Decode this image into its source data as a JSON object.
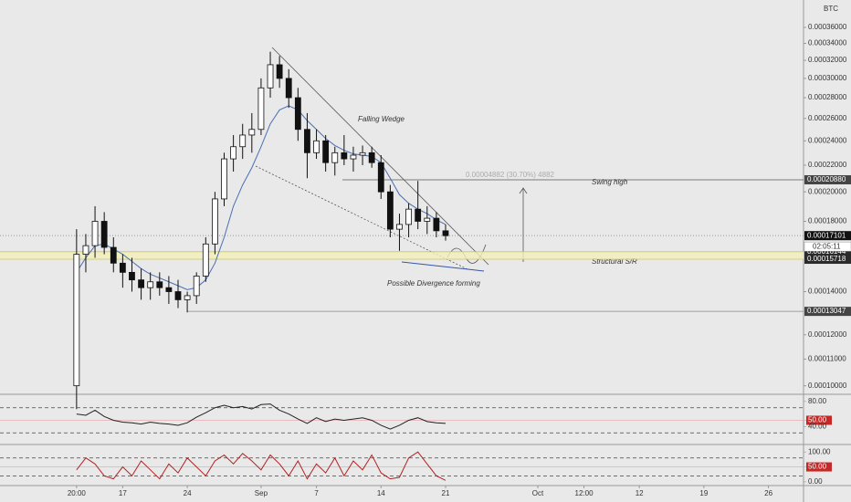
{
  "chart_data": [
    {
      "type": "candlestick",
      "symbol": "BTC",
      "x": [
        0,
        1,
        2,
        3,
        4,
        5,
        6,
        7,
        8,
        9,
        10,
        11,
        12,
        13,
        14,
        15,
        16,
        17,
        18,
        19,
        20,
        21,
        22,
        23,
        24,
        25,
        26,
        27,
        28,
        29,
        30,
        31,
        32,
        33,
        34,
        35,
        36,
        37,
        38,
        39,
        40
      ],
      "open": [
        0.0001,
        0.00016,
        0.000165,
        0.00018,
        0.000164,
        0.000155,
        0.00015,
        0.000146,
        0.000142,
        0.000145,
        0.000142,
        0.00014,
        0.000136,
        0.000138,
        0.000148,
        0.000166,
        0.000195,
        0.000225,
        0.000235,
        0.000245,
        0.00025,
        0.00029,
        0.000315,
        0.0003,
        0.00028,
        0.00025,
        0.00023,
        0.00024,
        0.000222,
        0.00023,
        0.000225,
        0.000228,
        0.00023,
        0.000222,
        0.0002,
        0.000175,
        0.000178,
        0.000188,
        0.00018,
        0.000182,
        0.000174
      ],
      "high": [
        0.000175,
        0.000172,
        0.00019,
        0.000186,
        0.00017,
        0.00016,
        0.000158,
        0.000152,
        0.00015,
        0.00015,
        0.000148,
        0.000146,
        0.00014,
        0.00015,
        0.00017,
        0.0002,
        0.00023,
        0.000245,
        0.000255,
        0.000265,
        0.0003,
        0.00033,
        0.000325,
        0.00031,
        0.00029,
        0.000265,
        0.00025,
        0.000245,
        0.000235,
        0.000245,
        0.000235,
        0.000236,
        0.000235,
        0.000228,
        0.000205,
        0.000185,
        0.000192,
        0.000208,
        0.00019,
        0.000186,
        0.000178
      ],
      "low": [
        9.2e-05,
        0.00015,
        0.000158,
        0.00016,
        0.00015,
        0.000142,
        0.00014,
        0.000136,
        0.000136,
        0.000138,
        0.000134,
        0.000132,
        0.00013,
        0.000134,
        0.000145,
        0.00016,
        0.00019,
        0.000215,
        0.000225,
        0.00023,
        0.000245,
        0.00028,
        0.00029,
        0.00027,
        0.00024,
        0.00021,
        0.000225,
        0.000215,
        0.000212,
        0.00022,
        0.000215,
        0.00022,
        0.000218,
        0.000195,
        0.00017,
        0.000162,
        0.00017,
        0.000175,
        0.000172,
        0.00017,
        0.000168
      ],
      "close": [
        0.00016,
        0.000165,
        0.00018,
        0.000164,
        0.000155,
        0.00015,
        0.000146,
        0.000142,
        0.000145,
        0.000142,
        0.00014,
        0.000136,
        0.000138,
        0.000148,
        0.000166,
        0.000195,
        0.000225,
        0.000235,
        0.000245,
        0.00025,
        0.00029,
        0.000315,
        0.0003,
        0.00028,
        0.00025,
        0.00023,
        0.00024,
        0.000222,
        0.00023,
        0.000225,
        0.000228,
        0.00023,
        0.000222,
        0.0002,
        0.000175,
        0.000178,
        0.000188,
        0.00018,
        0.000182,
        0.000174,
        0.000171
      ],
      "up_color": "#ffffff",
      "down_color": "#111111",
      "ma": {
        "color": "#4a6fb5",
        "values": [
          0.00015,
          0.000158,
          0.000165,
          0.000166,
          0.000163,
          0.00016,
          0.000156,
          0.000152,
          0.000149,
          0.000147,
          0.000145,
          0.000143,
          0.000141,
          0.000142,
          0.000146,
          0.000155,
          0.00017,
          0.00019,
          0.000205,
          0.000218,
          0.000235,
          0.000255,
          0.000268,
          0.000272,
          0.000268,
          0.000258,
          0.00025,
          0.000242,
          0.000236,
          0.000232,
          0.000229,
          0.000228,
          0.000227,
          0.000222,
          0.00021,
          0.000198,
          0.000192,
          0.000188,
          0.000185,
          0.000181,
          0.000178
        ]
      },
      "xlim": [
        -8.3,
        78.8
      ],
      "xticks": [
        {
          "value": 0,
          "label": "20:00"
        },
        {
          "value": 5,
          "label": "17"
        },
        {
          "value": 12,
          "label": "24"
        },
        {
          "value": 20,
          "label": "Sep"
        },
        {
          "value": 26,
          "label": "7"
        },
        {
          "value": 33,
          "label": "14"
        },
        {
          "value": 40,
          "label": "21"
        },
        {
          "value": 50,
          "label": "Oct"
        },
        {
          "value": 55,
          "label": "12:00"
        },
        {
          "value": 61,
          "label": "12"
        },
        {
          "value": 68,
          "label": "19"
        },
        {
          "value": 75,
          "label": "26"
        }
      ],
      "ylim": [
        9.7e-05,
        0.000397
      ],
      "log_scale": true,
      "yticks": [
        {
          "value": 0.00036,
          "label": "0.00036000"
        },
        {
          "value": 0.00034,
          "label": "0.00034000"
        },
        {
          "value": 0.00032,
          "label": "0.00032000"
        },
        {
          "value": 0.0003,
          "label": "0.00030000"
        },
        {
          "value": 0.00028,
          "label": "0.00028000"
        },
        {
          "value": 0.00026,
          "label": "0.00026000"
        },
        {
          "value": 0.00024,
          "label": "0.00024000"
        },
        {
          "value": 0.00022,
          "label": "0.00022000"
        },
        {
          "value": 0.0002,
          "label": "0.00020000"
        },
        {
          "value": 0.00018,
          "label": "0.00018000"
        },
        {
          "value": 0.00014,
          "label": "0.00014000"
        },
        {
          "value": 0.00012,
          "label": "0.00012000"
        },
        {
          "value": 0.00011,
          "label": "0.00011000"
        },
        {
          "value": 0.0001,
          "label": "0.00010000"
        }
      ],
      "levels": [
        {
          "value": 0.0002088,
          "label": "0.00020880",
          "color": "#555555"
        },
        {
          "value": 0.00017101,
          "color": "#111111"
        },
        {
          "value": 0.00016144,
          "color": "#c9c46a"
        },
        {
          "value": 0.00015718,
          "color": "#c9c46a"
        },
        {
          "value": 0.00013047,
          "color": "#888888"
        }
      ],
      "countdown": "02:05:11",
      "annotations": {
        "wedge": "Falling Wedge",
        "divergence": "Possible Divergence forming",
        "swing": "Swing high",
        "support": "Structural S/R",
        "measure": "0.00004882 (30.70%) 4882"
      }
    },
    {
      "type": "line",
      "color": "#222222",
      "values": [
        60,
        58,
        66,
        56,
        50,
        47,
        46,
        44,
        47,
        45,
        44,
        42,
        46,
        55,
        62,
        70,
        74,
        70,
        72,
        68,
        75,
        76,
        66,
        60,
        52,
        45,
        54,
        48,
        52,
        50,
        52,
        54,
        50,
        42,
        36,
        42,
        50,
        54,
        48,
        46,
        45
      ],
      "ylim": [
        11.4,
        91.4
      ],
      "yticks": [
        {
          "value": 80,
          "label": "80.00"
        },
        {
          "value": 50,
          "label": "50.00"
        },
        {
          "value": 40,
          "label": "40.00"
        }
      ],
      "bands": [
        70,
        30
      ]
    },
    {
      "type": "line",
      "color": "#b22222",
      "values": [
        40,
        80,
        60,
        20,
        10,
        50,
        20,
        70,
        40,
        10,
        60,
        30,
        80,
        50,
        20,
        70,
        90,
        60,
        95,
        70,
        40,
        90,
        60,
        20,
        70,
        10,
        60,
        30,
        80,
        20,
        70,
        40,
        90,
        30,
        10,
        15,
        80,
        100,
        60,
        20,
        5
      ],
      "ylim": [
        -12.5,
        125
      ],
      "yticks": [
        {
          "value": 100,
          "label": "100.00"
        },
        {
          "value": 50,
          "label": "50.00"
        },
        {
          "value": 0,
          "label": "0.00"
        }
      ],
      "bands": [
        80,
        20
      ]
    }
  ]
}
